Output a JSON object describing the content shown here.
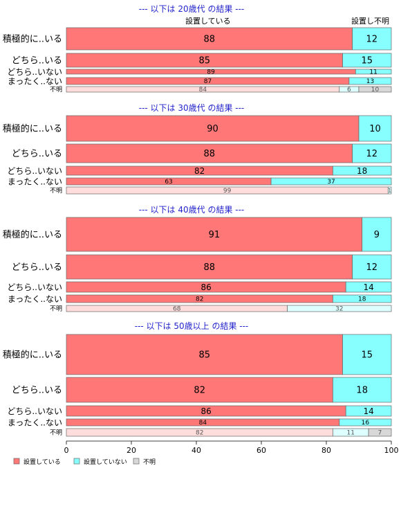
{
  "chart_data": {
    "type": "bar",
    "orientation": "horizontal",
    "stacked": true,
    "percent_scale": true,
    "xlim": [
      0,
      100
    ],
    "x_ticks": [
      "0",
      "20",
      "40",
      "60",
      "80",
      "100"
    ],
    "top_labels": [
      "設置している",
      "設置し",
      "不明"
    ],
    "legend": {
      "placement": "bottom-left",
      "entries": [
        "設置している",
        "設置していない",
        "不明"
      ]
    },
    "colors": {
      "series": [
        "#ff7777",
        "#88ffff",
        "#d8d8d8"
      ],
      "series_light": [
        "#ffdddd",
        "#ddffff",
        "#d8d8d8"
      ],
      "title": "#2222cc",
      "frame": "#666666"
    },
    "panels": [
      {
        "title": "--- 以下は 20歳代 の結果 ---",
        "rows": [
          {
            "label": "積極的に..いる",
            "values": [
              88,
              12,
              0
            ],
            "labels": [
              "88",
              "12",
              ""
            ]
          },
          {
            "label": "どちら..いる",
            "values": [
              85,
              15,
              0
            ],
            "labels": [
              "85",
              "15",
              ""
            ]
          },
          {
            "label": "どちら..いない",
            "values": [
              89,
              11,
              0
            ],
            "labels": [
              "89",
              "11",
              ""
            ]
          },
          {
            "label": "まったく..ない",
            "values": [
              87,
              13,
              0
            ],
            "labels": [
              "87",
              "13",
              ""
            ]
          },
          {
            "label": "不明",
            "values": [
              84,
              6,
              10
            ],
            "labels": [
              "84",
              "6",
              "10"
            ]
          }
        ]
      },
      {
        "title": "--- 以下は 30歳代 の結果 ---",
        "rows": [
          {
            "label": "積極的に..いる",
            "values": [
              90,
              10,
              0
            ],
            "labels": [
              "90",
              "10",
              ""
            ]
          },
          {
            "label": "どちら..いる",
            "values": [
              88,
              12,
              0
            ],
            "labels": [
              "88",
              "12",
              ""
            ]
          },
          {
            "label": "どちら..いない",
            "values": [
              82,
              18,
              0
            ],
            "labels": [
              "82",
              "18",
              ""
            ]
          },
          {
            "label": "まったく..ない",
            "values": [
              63,
              37,
              0
            ],
            "labels": [
              "63",
              "37",
              ""
            ]
          },
          {
            "label": "不明",
            "values": [
              99,
              1,
              0
            ],
            "labels": [
              "99",
              "1",
              ""
            ]
          }
        ]
      },
      {
        "title": "--- 以下は 40歳代 の結果 ---",
        "rows": [
          {
            "label": "積極的に..いる",
            "values": [
              91,
              9,
              0
            ],
            "labels": [
              "91",
              "9",
              ""
            ]
          },
          {
            "label": "どちら..いる",
            "values": [
              88,
              12,
              0
            ],
            "labels": [
              "88",
              "12",
              ""
            ]
          },
          {
            "label": "どちら..いない",
            "values": [
              86,
              14,
              0
            ],
            "labels": [
              "86",
              "14",
              ""
            ]
          },
          {
            "label": "まったく..ない",
            "values": [
              82,
              18,
              0
            ],
            "labels": [
              "82",
              "18",
              ""
            ]
          },
          {
            "label": "不明",
            "values": [
              68,
              32,
              0
            ],
            "labels": [
              "68",
              "32",
              ""
            ]
          }
        ]
      },
      {
        "title": "--- 以下は 50歳以上 の結果 ---",
        "rows": [
          {
            "label": "積極的に..いる",
            "values": [
              85,
              15,
              0
            ],
            "labels": [
              "85",
              "15",
              ""
            ]
          },
          {
            "label": "どちら..いる",
            "values": [
              82,
              18,
              0
            ],
            "labels": [
              "82",
              "18",
              ""
            ]
          },
          {
            "label": "どちら..いない",
            "values": [
              86,
              14,
              0
            ],
            "labels": [
              "86",
              "14",
              ""
            ]
          },
          {
            "label": "まったく..ない",
            "values": [
              84,
              16,
              0
            ],
            "labels": [
              "84",
              "16",
              ""
            ]
          },
          {
            "label": "不明",
            "values": [
              82,
              11,
              7
            ],
            "labels": [
              "82",
              "11",
              "7"
            ]
          }
        ]
      }
    ]
  }
}
